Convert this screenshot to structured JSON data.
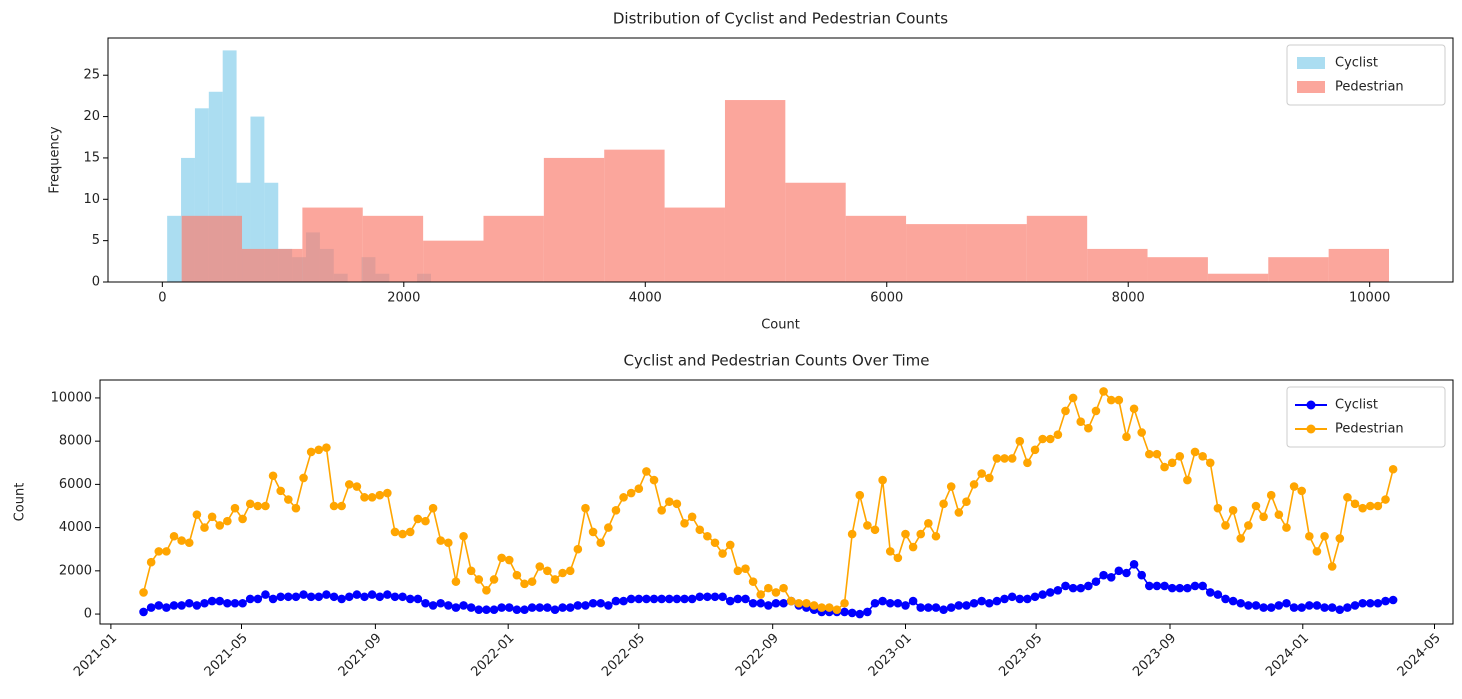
{
  "chart_data": [
    {
      "type": "histogram",
      "title": "Distribution of Cyclist and Pedestrian Counts",
      "xlabel": "Count",
      "ylabel": "Frequency",
      "series": [
        {
          "name": "Cyclist",
          "color": "#87ceeb",
          "bins": [
            40,
            155,
            270,
            385,
            500,
            615,
            730,
            845,
            960,
            1075,
            1190,
            1305,
            1420,
            1535,
            1650,
            1765,
            1880,
            1995,
            2110,
            2225,
            2340
          ],
          "counts": [
            8,
            15,
            21,
            23,
            28,
            12,
            20,
            12,
            4,
            3,
            6,
            4,
            1,
            0,
            3,
            1,
            0,
            0,
            1,
            0
          ]
        },
        {
          "name": "Pedestrian",
          "color": "#fa8072",
          "bins": [
            160,
            660,
            1160,
            1660,
            2160,
            2660,
            3160,
            3660,
            4160,
            4660,
            5160,
            5660,
            6160,
            6660,
            7160,
            7660,
            8160,
            8660,
            9160,
            9660,
            10160
          ],
          "counts": [
            8,
            4,
            9,
            8,
            5,
            8,
            15,
            16,
            9,
            22,
            12,
            8,
            7,
            7,
            8,
            4,
            3,
            1,
            3,
            4
          ]
        }
      ],
      "alpha": 0.7,
      "xlim": [
        -450,
        10690
      ],
      "ylim": [
        0,
        29.5
      ],
      "xticks": [
        0,
        2000,
        4000,
        6000,
        8000,
        10000
      ],
      "yticks": [
        0,
        5,
        10,
        15,
        20,
        25
      ],
      "legend": "upper right"
    },
    {
      "type": "line",
      "title": "Cyclist and Pedestrian Counts Over Time",
      "ylabel": "Count",
      "x": [
        "2021-01-31",
        "2021-02-07",
        "2021-02-14",
        "2021-02-21",
        "2021-02-28",
        "2021-03-07",
        "2021-03-14",
        "2021-03-21",
        "2021-03-28",
        "2021-04-04",
        "2021-04-11",
        "2021-04-18",
        "2021-04-25",
        "2021-05-02",
        "2021-05-09",
        "2021-05-16",
        "2021-05-23",
        "2021-05-30",
        "2021-06-06",
        "2021-06-13",
        "2021-06-20",
        "2021-06-27",
        "2021-07-04",
        "2021-07-11",
        "2021-07-18",
        "2021-07-25",
        "2021-08-01",
        "2021-08-08",
        "2021-08-15",
        "2021-08-22",
        "2021-08-29",
        "2021-09-05",
        "2021-09-12",
        "2021-09-19",
        "2021-09-26",
        "2021-10-03",
        "2021-10-10",
        "2021-10-17",
        "2021-10-24",
        "2021-10-31",
        "2021-11-07",
        "2021-11-14",
        "2021-11-21",
        "2021-11-28",
        "2021-12-05",
        "2021-12-12",
        "2021-12-19",
        "2021-12-26",
        "2022-01-02",
        "2022-01-09",
        "2022-01-16",
        "2022-01-23",
        "2022-01-30",
        "2022-02-06",
        "2022-02-13",
        "2022-02-20",
        "2022-02-27",
        "2022-03-06",
        "2022-03-13",
        "2022-03-20",
        "2022-03-27",
        "2022-04-03",
        "2022-04-10",
        "2022-04-17",
        "2022-04-24",
        "2022-05-01",
        "2022-05-08",
        "2022-05-15",
        "2022-05-22",
        "2022-05-29",
        "2022-06-05",
        "2022-06-12",
        "2022-06-19",
        "2022-06-26",
        "2022-07-03",
        "2022-07-10",
        "2022-07-17",
        "2022-07-24",
        "2022-07-31",
        "2022-08-07",
        "2022-08-14",
        "2022-08-21",
        "2022-08-28",
        "2022-09-04",
        "2022-09-11",
        "2022-09-18",
        "2022-09-25",
        "2022-10-02",
        "2022-10-09",
        "2022-10-16",
        "2022-10-23",
        "2022-10-30",
        "2022-11-06",
        "2022-11-13",
        "2022-11-20",
        "2022-11-27",
        "2022-12-04",
        "2022-12-11",
        "2022-12-18",
        "2022-12-25",
        "2023-01-01",
        "2023-01-08",
        "2023-01-15",
        "2023-01-22",
        "2023-01-29",
        "2023-02-05",
        "2023-02-12",
        "2023-02-19",
        "2023-02-26",
        "2023-03-05",
        "2023-03-12",
        "2023-03-19",
        "2023-03-26",
        "2023-04-02",
        "2023-04-09",
        "2023-04-16",
        "2023-04-23",
        "2023-04-30",
        "2023-05-07",
        "2023-05-14",
        "2023-05-21",
        "2023-05-28",
        "2023-06-04",
        "2023-06-11",
        "2023-06-18",
        "2023-06-25",
        "2023-07-02",
        "2023-07-09",
        "2023-07-16",
        "2023-07-23",
        "2023-07-30",
        "2023-08-06",
        "2023-08-13",
        "2023-08-20",
        "2023-08-27",
        "2023-09-03",
        "2023-09-10",
        "2023-09-17",
        "2023-09-24",
        "2023-10-01",
        "2023-10-08",
        "2023-10-15",
        "2023-10-22",
        "2023-10-29",
        "2023-11-05",
        "2023-11-12",
        "2023-11-19",
        "2023-11-26",
        "2023-12-03",
        "2023-12-10",
        "2023-12-17",
        "2023-12-24",
        "2023-12-31",
        "2024-01-07",
        "2024-01-14",
        "2024-01-21",
        "2024-01-28",
        "2024-02-04",
        "2024-02-11",
        "2024-02-18",
        "2024-02-25",
        "2024-03-03",
        "2024-03-10",
        "2024-03-17",
        "2024-03-24"
      ],
      "series": [
        {
          "name": "Cyclist",
          "color": "#0000ff",
          "values": [
            100,
            300,
            400,
            300,
            400,
            400,
            500,
            400,
            500,
            600,
            600,
            500,
            500,
            500,
            700,
            700,
            900,
            700,
            800,
            800,
            800,
            900,
            800,
            800,
            900,
            800,
            700,
            800,
            900,
            800,
            900,
            800,
            900,
            800,
            800,
            700,
            700,
            500,
            400,
            500,
            400,
            300,
            400,
            300,
            200,
            200,
            200,
            300,
            300,
            200,
            200,
            300,
            300,
            300,
            200,
            300,
            300,
            400,
            400,
            500,
            500,
            400,
            600,
            600,
            700,
            700,
            700,
            700,
            700,
            700,
            700,
            700,
            700,
            800,
            800,
            800,
            800,
            600,
            700,
            700,
            500,
            500,
            400,
            500,
            500,
            600,
            400,
            300,
            200,
            100,
            100,
            100,
            100,
            50,
            0,
            100,
            500,
            600,
            500,
            500,
            400,
            600,
            300,
            300,
            300,
            200,
            300,
            400,
            400,
            500,
            600,
            500,
            600,
            700,
            800,
            700,
            700,
            800,
            900,
            1000,
            1100,
            1300,
            1200,
            1200,
            1300,
            1500,
            1800,
            1700,
            2000,
            1900,
            2300,
            1800,
            1300,
            1300,
            1300,
            1200,
            1200,
            1200,
            1300,
            1300,
            1000,
            900,
            700,
            600,
            500,
            400,
            400,
            300,
            300,
            400,
            500,
            300,
            300,
            400,
            400,
            300,
            300,
            200,
            300,
            400,
            500,
            500,
            500,
            600,
            650
          ]
        },
        {
          "name": "Pedestrian",
          "color": "#ffa500",
          "values": [
            1000,
            2400,
            2900,
            2900,
            3600,
            3400,
            3300,
            4600,
            4000,
            4500,
            4100,
            4300,
            4900,
            4400,
            5100,
            5000,
            5000,
            6400,
            5700,
            5300,
            4900,
            6300,
            7500,
            7600,
            7700,
            5000,
            5000,
            6000,
            5900,
            5400,
            5400,
            5500,
            5600,
            3800,
            3700,
            3800,
            4400,
            4300,
            4900,
            3400,
            3300,
            1500,
            3600,
            2000,
            1600,
            1100,
            1600,
            2600,
            2500,
            1800,
            1400,
            1500,
            2200,
            2000,
            1600,
            1900,
            2000,
            3000,
            4900,
            3800,
            3300,
            4000,
            4800,
            5400,
            5600,
            5800,
            6600,
            6200,
            4800,
            5200,
            5100,
            4200,
            4500,
            3900,
            3600,
            3300,
            2800,
            3200,
            2000,
            2100,
            1500,
            900,
            1200,
            1000,
            1200,
            600,
            500,
            500,
            400,
            300,
            300,
            200,
            500,
            3700,
            5500,
            4100,
            3900,
            6200,
            2900,
            2600,
            3700,
            3100,
            3700,
            4200,
            3600,
            5100,
            5900,
            4700,
            5200,
            6000,
            6500,
            6300,
            7200,
            7200,
            7200,
            8000,
            7000,
            7600,
            8100,
            8100,
            8300,
            9400,
            10000,
            8900,
            8600,
            9400,
            10300,
            9900,
            9900,
            8200,
            9500,
            8400,
            7400,
            7400,
            6800,
            7000,
            7300,
            6200,
            7500,
            7300,
            7000,
            4900,
            4100,
            4800,
            3500,
            4100,
            5000,
            4500,
            5500,
            4600,
            4000,
            5900,
            5700,
            3600,
            2900,
            3600,
            2200,
            3500,
            5400,
            5100,
            4900,
            5000,
            5000,
            5300,
            6700
          ]
        }
      ],
      "marker": "o",
      "xlim": [
        "2020-12-22",
        "2024-05-18"
      ],
      "ylim": [
        -460,
        10830
      ],
      "xticks": [
        "2021-01",
        "2021-05",
        "2021-09",
        "2022-01",
        "2022-05",
        "2022-09",
        "2023-01",
        "2023-05",
        "2023-09",
        "2024-01",
        "2024-05"
      ],
      "yticks": [
        0,
        2000,
        4000,
        6000,
        8000,
        10000
      ],
      "legend": "upper right"
    }
  ]
}
